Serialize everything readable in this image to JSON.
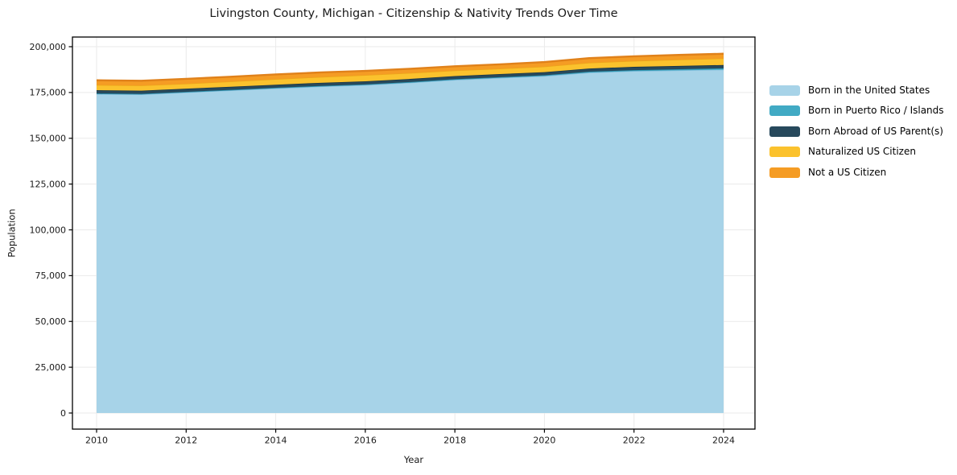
{
  "chart_data": {
    "type": "area",
    "stacked": true,
    "title": "Livingston County, Michigan - Citizenship & Nativity Trends Over Time",
    "xlabel": "Year",
    "ylabel": "Population",
    "grid": true,
    "legend_position": "right-outside",
    "x": [
      2010,
      2011,
      2012,
      2013,
      2014,
      2015,
      2016,
      2017,
      2018,
      2019,
      2020,
      2021,
      2022,
      2023,
      2024
    ],
    "xticks": [
      2010,
      2012,
      2014,
      2016,
      2018,
      2020,
      2022,
      2024
    ],
    "ylim": [
      0,
      200000
    ],
    "yticks": [
      0,
      25000,
      50000,
      75000,
      100000,
      125000,
      150000,
      175000,
      200000
    ],
    "series": [
      {
        "name": "Born in the United States",
        "color": "#a7d3e8",
        "edge": "#86bedd",
        "values": [
          174200,
          174000,
          175100,
          176200,
          177300,
          178300,
          179100,
          180400,
          181900,
          183000,
          184000,
          185900,
          186700,
          187100,
          187500
        ]
      },
      {
        "name": "Born in Puerto Rico / Islands",
        "color": "#41aac4",
        "edge": "#2b93ae",
        "values": [
          250,
          250,
          250,
          250,
          300,
          300,
          300,
          300,
          350,
          350,
          400,
          450,
          500,
          600,
          700
        ]
      },
      {
        "name": "Born Abroad of US Parent(s)",
        "color": "#27495c",
        "edge": "#1b3645",
        "values": [
          1800,
          1750,
          1750,
          1700,
          1650,
          1700,
          1700,
          1700,
          1700,
          1700,
          1700,
          1750,
          1800,
          1800,
          1800
        ]
      },
      {
        "name": "Naturalized US Citizen",
        "color": "#fbc22d",
        "edge": "#eda41b",
        "values": [
          2900,
          2850,
          2750,
          2900,
          3100,
          3200,
          3400,
          3300,
          3100,
          3000,
          3100,
          3200,
          3300,
          3500,
          3650
        ]
      },
      {
        "name": "Not a US Citizen",
        "color": "#f59c24",
        "edge": "#e0811a",
        "values": [
          2500,
          2550,
          2600,
          2550,
          2500,
          2450,
          2300,
          2250,
          2250,
          2300,
          2400,
          2450,
          2450,
          2500,
          2500
        ]
      }
    ]
  }
}
